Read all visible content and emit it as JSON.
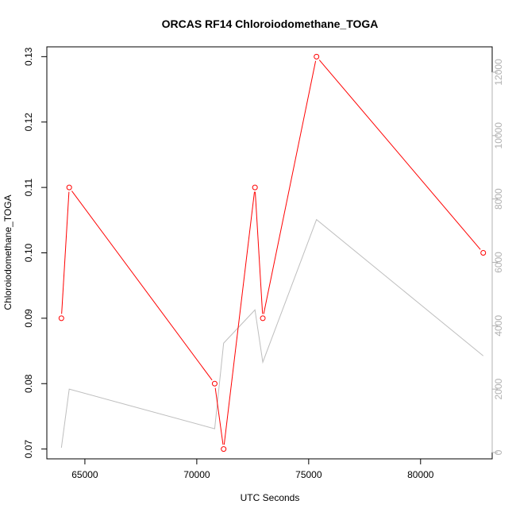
{
  "chart_data": {
    "type": "line",
    "title": "ORCAS RF14 Chloroiodomethane_TOGA",
    "xlabel": "UTC Seconds",
    "ylabel": "Chloroiodomethane_TOGA",
    "xlim": [
      63300,
      83200
    ],
    "ylim": [
      0.0685,
      0.1315
    ],
    "x_ticks": [
      65000,
      70000,
      75000,
      80000
    ],
    "y_ticks": [
      0.07,
      0.08,
      0.09,
      0.1,
      0.11,
      0.12,
      0.13
    ],
    "y_tick_labels": [
      "0.07",
      "0.08",
      "0.09",
      "0.10",
      "0.11",
      "0.12",
      "0.13"
    ],
    "y2lim": [
      -200,
      12800
    ],
    "y2_ticks": [
      0,
      2000,
      4000,
      6000,
      8000,
      10000,
      12000
    ],
    "grid": false,
    "series": [
      {
        "axis": "left",
        "color": "#ff0000",
        "markers": "open-circle",
        "x": [
          63950,
          64300,
          70800,
          71200,
          72600,
          72950,
          75350,
          82800
        ],
        "y": [
          0.09,
          0.11,
          0.08,
          0.07,
          0.11,
          0.09,
          0.13,
          0.1
        ]
      },
      {
        "axis": "right",
        "color": "#bebebe",
        "markers": "none",
        "x": [
          63950,
          64300,
          70800,
          71200,
          72600,
          72950,
          75350,
          82800
        ],
        "y": [
          150,
          2000,
          750,
          3450,
          4500,
          2850,
          7350,
          3050
        ]
      }
    ]
  }
}
